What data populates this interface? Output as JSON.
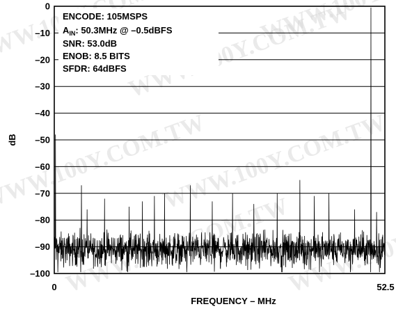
{
  "chart_data": {
    "type": "line",
    "title": "",
    "xlabel": "FREQUENCY – MHz",
    "ylabel": "dB",
    "xlim": [
      0,
      52.5
    ],
    "ylim": [
      -100,
      0
    ],
    "grid": true,
    "x_ticks": [
      "0",
      "52.5"
    ],
    "y_ticks": [
      "0",
      "–10",
      "–20",
      "–30",
      "–40",
      "–50",
      "–60",
      "–70",
      "–80",
      "–90",
      "–100"
    ],
    "annotations": {
      "encode": "ENCODE: 105MSPS",
      "ain_prefix": "A",
      "ain_sub": "IN",
      "ain_rest": ": 50.3MHz @ –0.5dBFS",
      "snr": "SNR: 53.0dB",
      "enob": "ENOB: 8.5 BITS",
      "sfdr": "SFDR: 64dBFS"
    },
    "series": [
      {
        "noise_floor_db": -91,
        "noise_spread_db": 6,
        "fundamental": {
          "x": 50.3,
          "y": -0.5
        },
        "spurs": [
          {
            "x": 0.2,
            "y": -48
          },
          {
            "x": 4.3,
            "y": -67
          },
          {
            "x": 5.2,
            "y": -76
          },
          {
            "x": 8.0,
            "y": -72
          },
          {
            "x": 11.9,
            "y": -75
          },
          {
            "x": 14.0,
            "y": -73
          },
          {
            "x": 15.9,
            "y": -71
          },
          {
            "x": 17.5,
            "y": -70
          },
          {
            "x": 21.6,
            "y": -67
          },
          {
            "x": 25.1,
            "y": -73
          },
          {
            "x": 28.3,
            "y": -70
          },
          {
            "x": 31.7,
            "y": -74
          },
          {
            "x": 35.4,
            "y": -70
          },
          {
            "x": 39.0,
            "y": -65
          },
          {
            "x": 41.3,
            "y": -71
          },
          {
            "x": 43.6,
            "y": -70
          },
          {
            "x": 47.7,
            "y": -76
          },
          {
            "x": 51.2,
            "y": -77
          }
        ]
      }
    ]
  },
  "watermark": "WWW.100Y.COM.TW"
}
